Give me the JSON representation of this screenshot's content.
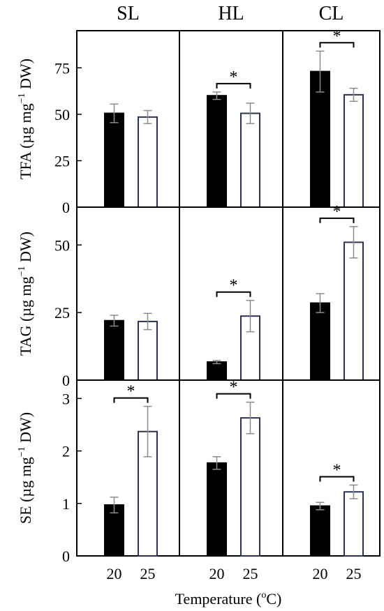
{
  "figure": {
    "column_titles": [
      "SL",
      "HL",
      "CL"
    ],
    "xlabel": "Temperature (",
    "xlabel_sup": "o",
    "xlabel_end": "C)",
    "row_ylabels": [
      {
        "main": "TFA (µg mg",
        "sup": "−1",
        "end": " DW)"
      },
      {
        "main": "TAG (µg mg",
        "sup": "−1",
        "end": " DW)"
      },
      {
        "main": "SE (µg mg",
        "sup": "−1",
        "end": " DW)"
      }
    ],
    "sig_mark": "*"
  },
  "colors": {
    "bar_20": "#000000",
    "bar_25": "#ffffff",
    "bar_outline_25": "#2c3350",
    "error": "#8c8c8c",
    "axis": "#000000"
  },
  "chart_data": {
    "type": "bar",
    "categories": [
      "20",
      "25"
    ],
    "x_label": "Temperature (oC)",
    "columns": [
      "SL",
      "HL",
      "CL"
    ],
    "rows": [
      {
        "name": "TFA",
        "ylim": [
          0,
          95
        ],
        "yticks": [
          "0",
          "25",
          "50",
          "75"
        ],
        "ytick_values": [
          0,
          25,
          50,
          75
        ],
        "values": [
          [
            50.5,
            48.5
          ],
          [
            60,
            50.5
          ],
          [
            73,
            60.5
          ]
        ],
        "errors": [
          [
            5,
            3.5
          ],
          [
            2,
            5.5
          ],
          [
            11,
            3.5
          ]
        ],
        "significant": [
          false,
          true,
          true
        ]
      },
      {
        "name": "TAG",
        "ylim": [
          0,
          64
        ],
        "yticks": [
          "0",
          "25",
          "50"
        ],
        "ytick_values": [
          0,
          25,
          50
        ],
        "values": [
          [
            22,
            21.7
          ],
          [
            6.7,
            23.7
          ],
          [
            28.5,
            51
          ]
        ],
        "errors": [
          [
            2,
            3
          ],
          [
            0.6,
            5.8
          ],
          [
            3.5,
            5.8
          ]
        ],
        "significant": [
          false,
          true,
          true
        ]
      },
      {
        "name": "SE",
        "ylim": [
          0,
          3.35
        ],
        "yticks": [
          "0",
          "1",
          "2",
          "3"
        ],
        "ytick_values": [
          0,
          1,
          2,
          3
        ],
        "values": [
          [
            0.97,
            2.37
          ],
          [
            1.77,
            2.63
          ],
          [
            0.95,
            1.22
          ]
        ],
        "errors": [
          [
            0.15,
            0.48
          ],
          [
            0.12,
            0.3
          ],
          [
            0.07,
            0.13
          ]
        ],
        "significant": [
          true,
          true,
          true
        ]
      }
    ]
  }
}
